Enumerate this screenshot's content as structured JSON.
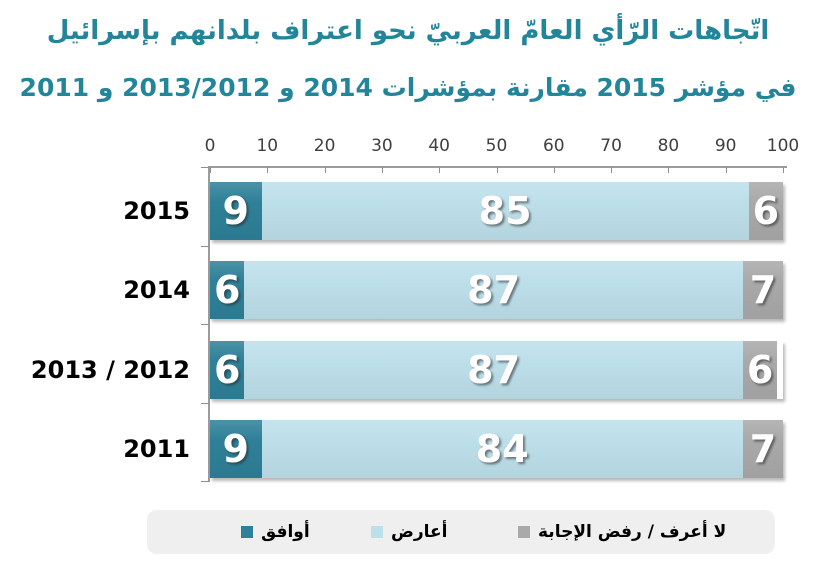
{
  "title": {
    "line1": "اتّجاهات الرّأي العامّ العربيّ نحو اعتراف بلدانهم بإسرائيل",
    "line2": "في مؤشر 2015 مقارنة بمؤشرات 2014 و 2013/2012 و 2011"
  },
  "x_axis": {
    "tick_labels": [
      "0",
      "10",
      "20",
      "30",
      "40",
      "50",
      "60",
      "70",
      "80",
      "90",
      "100"
    ],
    "min": 0,
    "max": 100
  },
  "chart_data": {
    "type": "bar",
    "orientation": "horizontal_stacked",
    "title": "اتّجاهات الرّأي العامّ العربيّ نحو اعتراف بلدانهم بإسرائيل في مؤشر 2015 مقارنة بمؤشرات 2014 و 2013/2012 و 2011",
    "categories": [
      "2015",
      "2014",
      "2013 / 2012",
      "2011"
    ],
    "series": [
      {
        "name": "أوافق",
        "color": "#2E8098",
        "values": [
          9,
          6,
          6,
          9
        ]
      },
      {
        "name": "أعارض",
        "color": "#BDDFEA",
        "values": [
          85,
          87,
          87,
          84
        ]
      },
      {
        "name": "لا أعرف /  رفض الإجابة",
        "color": "#A9A9A9",
        "values": [
          6,
          7,
          6,
          7
        ]
      }
    ],
    "xlim": [
      0,
      100
    ],
    "grid": false,
    "legend_position": "bottom",
    "value_labels": "inside_white"
  },
  "legend": {
    "items": [
      {
        "label": "أوافق",
        "color": "#2E8098"
      },
      {
        "label": "أعارض",
        "color": "#BDDFEA"
      },
      {
        "label": "لا أعرف /  رفض الإجابة",
        "color": "#A9A9A9"
      }
    ]
  },
  "colors": {
    "agree": "#2E8098",
    "oppose": "#BDDFEA",
    "dont_know": "#A9A9A9",
    "title_text": "#23859A",
    "axis": "#9B9B9B",
    "tick_text": "#3F3F3F",
    "category_text": "#000000",
    "value_text": "#FFFFFF",
    "legend_background": "#EFEFEF"
  }
}
